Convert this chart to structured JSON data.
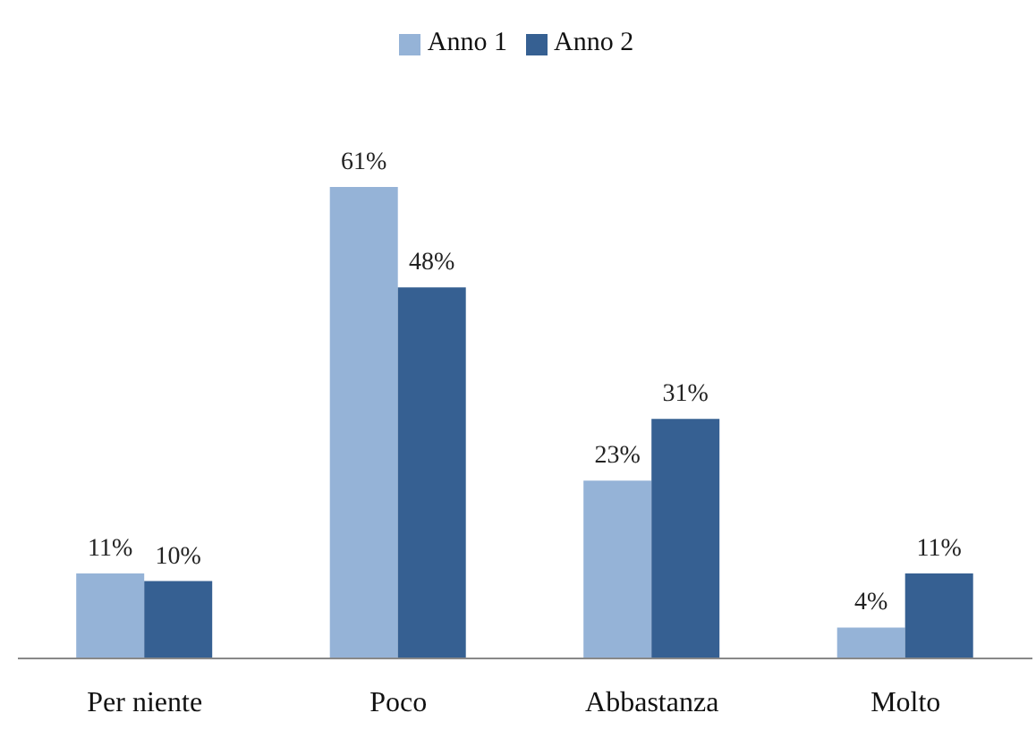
{
  "chart_data": {
    "type": "bar",
    "categories": [
      "Per niente",
      "Poco",
      "Abbastanza",
      "Molto"
    ],
    "series": [
      {
        "name": "Anno 1",
        "color": "#95b3d7",
        "values": [
          11,
          61,
          23,
          4
        ],
        "value_labels": [
          "11%",
          "61%",
          "23%",
          "4%"
        ]
      },
      {
        "name": "Anno 2",
        "color": "#366092",
        "values": [
          10,
          48,
          31,
          11
        ],
        "value_labels": [
          "10%",
          "48%",
          "31%",
          "11%"
        ]
      }
    ],
    "legend": "top",
    "grid": false
  }
}
